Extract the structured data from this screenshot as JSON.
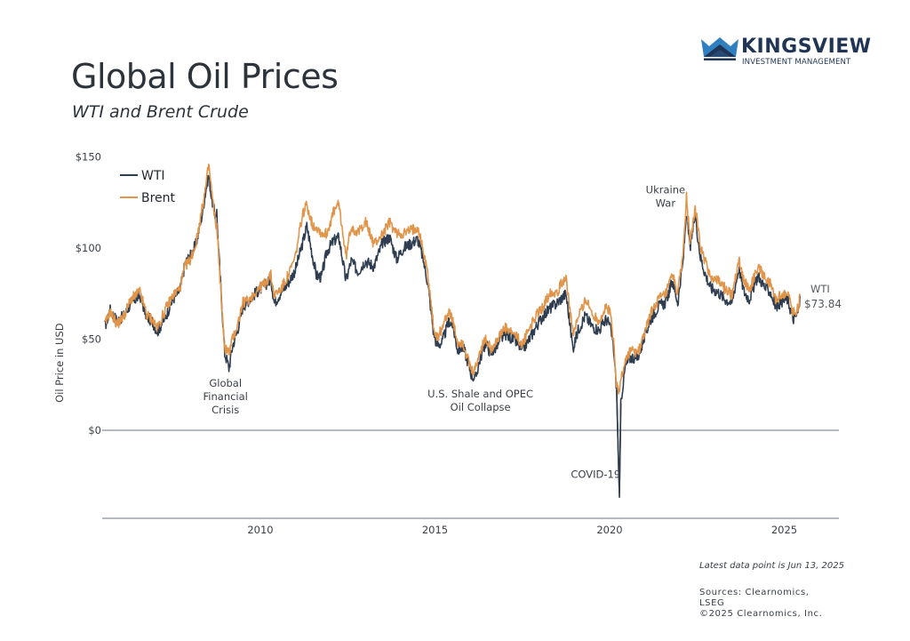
{
  "header": {
    "title": "Global Oil Prices",
    "subtitle": "WTI and Brent Crude"
  },
  "logo": {
    "name": "KINGSVIEW",
    "tagline": "INVESTMENT MANAGEMENT",
    "colors": {
      "crown_light": "#2f7fc1",
      "crown_dark": "#1f3553"
    }
  },
  "footer": {
    "note": "Latest data point is Jun 13, 2025",
    "sources_lines": [
      "Sources: Clearnomics,",
      "LSEG",
      "©2025 Clearnomics, Inc."
    ]
  },
  "chart_data": {
    "type": "line",
    "title": "Global Oil Prices",
    "subtitle": "WTI and Brent Crude",
    "xlabel": "",
    "ylabel": "Oil Price in USD",
    "xlim": [
      2005.5,
      2026.6
    ],
    "ylim": [
      -48,
      150
    ],
    "x_ticks": [
      2010,
      2015,
      2020,
      2025
    ],
    "x_tick_labels": [
      "2010",
      "2015",
      "2020",
      "2025"
    ],
    "y_ticks": [
      0,
      50,
      100,
      150
    ],
    "y_tick_labels": [
      "$0",
      "$50",
      "$100",
      "$150"
    ],
    "grid": false,
    "zero_line": true,
    "legend": {
      "placement": "top-left",
      "entries": [
        "WTI",
        "Brent"
      ]
    },
    "colors": {
      "WTI": "#2e3d4f",
      "Brent": "#e0954a",
      "axis": "#8a8f96",
      "text": "#3a3f47"
    },
    "end_label": {
      "series": "WTI",
      "line1": "WTI",
      "line2": "$73.84",
      "value": 73.84
    },
    "annotations": [
      {
        "text_lines": [
          "Global",
          "Financial",
          "Crisis"
        ],
        "x": 2009.0,
        "y": 24
      },
      {
        "text_lines": [
          "U.S. Shale and OPEC",
          "Oil Collapse"
        ],
        "x": 2016.3,
        "y": 18
      },
      {
        "text_lines": [
          "COVID-19"
        ],
        "x": 2019.6,
        "y": -26
      },
      {
        "text_lines": [
          "Ukraine",
          "War"
        ],
        "x": 2021.6,
        "y": 130
      }
    ],
    "series": [
      {
        "name": "WTI",
        "points": [
          [
            2005.55,
            57
          ],
          [
            2005.7,
            66
          ],
          [
            2005.9,
            60
          ],
          [
            2006.1,
            63
          ],
          [
            2006.3,
            70
          ],
          [
            2006.55,
            74
          ],
          [
            2006.75,
            62
          ],
          [
            2006.9,
            60
          ],
          [
            2007.05,
            54
          ],
          [
            2007.3,
            63
          ],
          [
            2007.5,
            72
          ],
          [
            2007.7,
            77
          ],
          [
            2007.85,
            92
          ],
          [
            2008.0,
            96
          ],
          [
            2008.15,
            102
          ],
          [
            2008.3,
            115
          ],
          [
            2008.45,
            133
          ],
          [
            2008.52,
            140
          ],
          [
            2008.6,
            128
          ],
          [
            2008.7,
            118
          ],
          [
            2008.75,
            120
          ],
          [
            2008.8,
            100
          ],
          [
            2008.9,
            68
          ],
          [
            2008.98,
            42
          ],
          [
            2009.05,
            38
          ],
          [
            2009.1,
            34
          ],
          [
            2009.2,
            46
          ],
          [
            2009.35,
            55
          ],
          [
            2009.5,
            68
          ],
          [
            2009.7,
            72
          ],
          [
            2009.9,
            76
          ],
          [
            2010.1,
            79
          ],
          [
            2010.3,
            83
          ],
          [
            2010.4,
            70
          ],
          [
            2010.6,
            76
          ],
          [
            2010.8,
            81
          ],
          [
            2011.0,
            88
          ],
          [
            2011.2,
            102
          ],
          [
            2011.33,
            112
          ],
          [
            2011.5,
            95
          ],
          [
            2011.6,
            85
          ],
          [
            2011.75,
            84
          ],
          [
            2011.9,
            98
          ],
          [
            2012.1,
            104
          ],
          [
            2012.25,
            106
          ],
          [
            2012.45,
            82
          ],
          [
            2012.6,
            93
          ],
          [
            2012.8,
            87
          ],
          [
            2013.0,
            93
          ],
          [
            2013.25,
            90
          ],
          [
            2013.5,
            103
          ],
          [
            2013.7,
            106
          ],
          [
            2013.9,
            94
          ],
          [
            2014.1,
            100
          ],
          [
            2014.35,
            103
          ],
          [
            2014.5,
            105
          ],
          [
            2014.65,
            95
          ],
          [
            2014.8,
            80
          ],
          [
            2014.95,
            55
          ],
          [
            2015.05,
            47
          ],
          [
            2015.2,
            48
          ],
          [
            2015.4,
            60
          ],
          [
            2015.5,
            58
          ],
          [
            2015.65,
            44
          ],
          [
            2015.8,
            46
          ],
          [
            2015.95,
            37
          ],
          [
            2016.05,
            30
          ],
          [
            2016.15,
            28
          ],
          [
            2016.3,
            40
          ],
          [
            2016.45,
            48
          ],
          [
            2016.6,
            42
          ],
          [
            2016.8,
            47
          ],
          [
            2017.0,
            53
          ],
          [
            2017.3,
            49
          ],
          [
            2017.5,
            44
          ],
          [
            2017.7,
            50
          ],
          [
            2017.9,
            57
          ],
          [
            2018.1,
            63
          ],
          [
            2018.3,
            67
          ],
          [
            2018.5,
            70
          ],
          [
            2018.75,
            75
          ],
          [
            2018.95,
            45
          ],
          [
            2019.1,
            55
          ],
          [
            2019.3,
            63
          ],
          [
            2019.5,
            57
          ],
          [
            2019.7,
            55
          ],
          [
            2019.9,
            61
          ],
          [
            2020.0,
            58
          ],
          [
            2020.1,
            48
          ],
          [
            2020.2,
            22
          ],
          [
            2020.28,
            -37
          ],
          [
            2020.32,
            15
          ],
          [
            2020.45,
            35
          ],
          [
            2020.6,
            40
          ],
          [
            2020.8,
            40
          ],
          [
            2020.95,
            48
          ],
          [
            2021.15,
            60
          ],
          [
            2021.4,
            68
          ],
          [
            2021.6,
            70
          ],
          [
            2021.8,
            82
          ],
          [
            2021.95,
            70
          ],
          [
            2022.1,
            92
          ],
          [
            2022.2,
            120
          ],
          [
            2022.3,
            100
          ],
          [
            2022.45,
            118
          ],
          [
            2022.6,
            95
          ],
          [
            2022.75,
            85
          ],
          [
            2022.9,
            78
          ],
          [
            2023.1,
            76
          ],
          [
            2023.3,
            72
          ],
          [
            2023.5,
            70
          ],
          [
            2023.7,
            89
          ],
          [
            2023.85,
            76
          ],
          [
            2024.0,
            72
          ],
          [
            2024.25,
            85
          ],
          [
            2024.45,
            78
          ],
          [
            2024.6,
            76
          ],
          [
            2024.75,
            68
          ],
          [
            2024.95,
            71
          ],
          [
            2025.1,
            72
          ],
          [
            2025.25,
            61
          ],
          [
            2025.35,
            63
          ],
          [
            2025.42,
            66
          ],
          [
            2025.45,
            73.84
          ]
        ]
      },
      {
        "name": "Brent",
        "points": [
          [
            2005.55,
            58
          ],
          [
            2005.7,
            65
          ],
          [
            2005.9,
            58
          ],
          [
            2006.1,
            63
          ],
          [
            2006.3,
            72
          ],
          [
            2006.55,
            76
          ],
          [
            2006.75,
            63
          ],
          [
            2006.9,
            61
          ],
          [
            2007.05,
            56
          ],
          [
            2007.3,
            67
          ],
          [
            2007.5,
            74
          ],
          [
            2007.7,
            78
          ],
          [
            2007.85,
            90
          ],
          [
            2008.0,
            94
          ],
          [
            2008.15,
            102
          ],
          [
            2008.3,
            118
          ],
          [
            2008.45,
            135
          ],
          [
            2008.52,
            146
          ],
          [
            2008.6,
            132
          ],
          [
            2008.7,
            115
          ],
          [
            2008.75,
            112
          ],
          [
            2008.8,
            98
          ],
          [
            2008.9,
            65
          ],
          [
            2008.98,
            45
          ],
          [
            2009.05,
            44
          ],
          [
            2009.1,
            42
          ],
          [
            2009.2,
            50
          ],
          [
            2009.35,
            58
          ],
          [
            2009.5,
            70
          ],
          [
            2009.7,
            72
          ],
          [
            2009.9,
            77
          ],
          [
            2010.1,
            80
          ],
          [
            2010.3,
            85
          ],
          [
            2010.4,
            74
          ],
          [
            2010.6,
            78
          ],
          [
            2010.8,
            85
          ],
          [
            2011.0,
            95
          ],
          [
            2011.2,
            118
          ],
          [
            2011.33,
            124
          ],
          [
            2011.5,
            112
          ],
          [
            2011.6,
            112
          ],
          [
            2011.75,
            108
          ],
          [
            2011.9,
            108
          ],
          [
            2012.1,
            120
          ],
          [
            2012.25,
            124
          ],
          [
            2012.45,
            95
          ],
          [
            2012.6,
            112
          ],
          [
            2012.8,
            108
          ],
          [
            2013.0,
            115
          ],
          [
            2013.25,
            102
          ],
          [
            2013.5,
            108
          ],
          [
            2013.7,
            114
          ],
          [
            2013.9,
            108
          ],
          [
            2014.1,
            108
          ],
          [
            2014.35,
            110
          ],
          [
            2014.5,
            112
          ],
          [
            2014.65,
            100
          ],
          [
            2014.8,
            85
          ],
          [
            2014.95,
            58
          ],
          [
            2015.05,
            50
          ],
          [
            2015.2,
            56
          ],
          [
            2015.4,
            66
          ],
          [
            2015.5,
            60
          ],
          [
            2015.65,
            48
          ],
          [
            2015.8,
            48
          ],
          [
            2015.95,
            38
          ],
          [
            2016.05,
            32
          ],
          [
            2016.15,
            33
          ],
          [
            2016.3,
            44
          ],
          [
            2016.45,
            50
          ],
          [
            2016.6,
            45
          ],
          [
            2016.8,
            50
          ],
          [
            2017.0,
            56
          ],
          [
            2017.3,
            52
          ],
          [
            2017.5,
            47
          ],
          [
            2017.7,
            56
          ],
          [
            2017.9,
            63
          ],
          [
            2018.1,
            68
          ],
          [
            2018.3,
            76
          ],
          [
            2018.5,
            76
          ],
          [
            2018.75,
            85
          ],
          [
            2018.95,
            52
          ],
          [
            2019.1,
            62
          ],
          [
            2019.3,
            72
          ],
          [
            2019.5,
            64
          ],
          [
            2019.7,
            60
          ],
          [
            2019.9,
            67
          ],
          [
            2020.0,
            66
          ],
          [
            2020.1,
            52
          ],
          [
            2020.2,
            26
          ],
          [
            2020.28,
            20
          ],
          [
            2020.32,
            28
          ],
          [
            2020.45,
            38
          ],
          [
            2020.6,
            44
          ],
          [
            2020.8,
            42
          ],
          [
            2020.95,
            50
          ],
          [
            2021.15,
            63
          ],
          [
            2021.4,
            72
          ],
          [
            2021.6,
            74
          ],
          [
            2021.8,
            85
          ],
          [
            2021.95,
            75
          ],
          [
            2022.1,
            96
          ],
          [
            2022.2,
            128
          ],
          [
            2022.3,
            104
          ],
          [
            2022.45,
            123
          ],
          [
            2022.6,
            100
          ],
          [
            2022.75,
            92
          ],
          [
            2022.9,
            84
          ],
          [
            2023.1,
            82
          ],
          [
            2023.3,
            78
          ],
          [
            2023.5,
            74
          ],
          [
            2023.7,
            94
          ],
          [
            2023.85,
            82
          ],
          [
            2024.0,
            77
          ],
          [
            2024.25,
            90
          ],
          [
            2024.45,
            83
          ],
          [
            2024.6,
            80
          ],
          [
            2024.75,
            72
          ],
          [
            2024.95,
            74
          ],
          [
            2025.1,
            76
          ],
          [
            2025.25,
            64
          ],
          [
            2025.35,
            66
          ],
          [
            2025.42,
            68
          ],
          [
            2025.45,
            75
          ]
        ]
      }
    ]
  }
}
